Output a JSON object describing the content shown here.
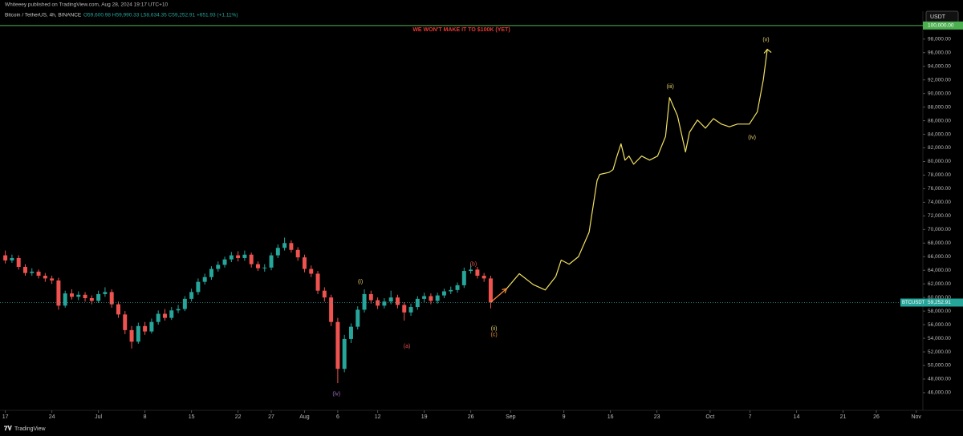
{
  "header": {
    "byline": "Whiteeey published on TradingView.com, Aug 28, 2024 19:17 UTC+10",
    "symbol": "Bitcoin / TetherUS, 4h, BINANCE",
    "ohlc": "O59,600.98 H59,990.33 L58,634.35 C59,252.91 +651.93 (+1.11%)",
    "currency": "USDT"
  },
  "footer": {
    "brand": "TradingView"
  },
  "chart_data": {
    "type": "candlestick",
    "title": "WE WON'T MAKE IT TO $100K (YET)",
    "up_color": "#26a69a",
    "down_color": "#ef5350",
    "candles": {
      "x": [
        0,
        1,
        2,
        3,
        4,
        5,
        6,
        7,
        8,
        9,
        10,
        11,
        12,
        13,
        14,
        15,
        16,
        17,
        18,
        19,
        20,
        21,
        22,
        23,
        24,
        25,
        26,
        27,
        28,
        29,
        30,
        31,
        32,
        33,
        34,
        35,
        36,
        37,
        38,
        39,
        40,
        41,
        42,
        43,
        44,
        45,
        46,
        47,
        48,
        49,
        50,
        51,
        52,
        53,
        54,
        55,
        56,
        57,
        58,
        59,
        60,
        61,
        62,
        63,
        64,
        65,
        66,
        67,
        68,
        69,
        70,
        71,
        72,
        73
      ],
      "open": [
        66200,
        65450,
        65800,
        64500,
        63600,
        63800,
        63200,
        62800,
        62500,
        58800,
        60600,
        60100,
        60400,
        59900,
        59500,
        60500,
        60800,
        59000,
        57500,
        55200,
        53500,
        55800,
        55000,
        56400,
        57600,
        57000,
        58100,
        58300,
        59800,
        60800,
        62300,
        63000,
        64200,
        64800,
        65600,
        66200,
        65800,
        66300,
        64900,
        64300,
        64400,
        66200,
        67300,
        68000,
        67000,
        65900,
        64200,
        63500,
        61000,
        60000,
        56400,
        49500,
        53900,
        55700,
        58200,
        60500,
        59600,
        58800,
        59400,
        60000,
        58900,
        57800,
        58600,
        59800,
        60200,
        59500,
        60300,
        60900,
        61100,
        61800,
        63900,
        64100,
        63200,
        62800
      ],
      "high": [
        66900,
        66300,
        66200,
        64900,
        64300,
        64100,
        63600,
        63200,
        62900,
        61000,
        61200,
        60900,
        60800,
        60300,
        61000,
        61500,
        61200,
        59400,
        58000,
        55800,
        56300,
        56400,
        56900,
        58100,
        58300,
        58600,
        58900,
        60200,
        61300,
        62800,
        63500,
        64600,
        65300,
        66000,
        66700,
        66800,
        66900,
        66600,
        65300,
        64900,
        66600,
        67800,
        68800,
        68400,
        67400,
        66300,
        64700,
        63900,
        61500,
        60400,
        57000,
        54500,
        56200,
        58700,
        61200,
        61000,
        60000,
        59900,
        61000,
        60400,
        59300,
        59100,
        60200,
        60700,
        60600,
        60700,
        61300,
        61600,
        62200,
        64400,
        64900,
        64500,
        63600,
        63200
      ],
      "low": [
        65000,
        65100,
        64100,
        63200,
        63200,
        62800,
        62300,
        62000,
        58200,
        58500,
        59700,
        59600,
        59400,
        59000,
        59200,
        60100,
        58500,
        57000,
        54600,
        52500,
        53200,
        54500,
        54700,
        56000,
        56600,
        56700,
        57700,
        58000,
        59400,
        60400,
        61900,
        62600,
        63800,
        64400,
        65200,
        65300,
        65400,
        64400,
        63900,
        63800,
        64000,
        65800,
        66900,
        66600,
        65400,
        63700,
        63000,
        60500,
        59400,
        55800,
        47400,
        49000,
        53300,
        55300,
        57800,
        59100,
        58300,
        58400,
        59000,
        58400,
        56600,
        57300,
        58200,
        59300,
        59000,
        59100,
        59900,
        60500,
        60700,
        61400,
        63500,
        62800,
        62300,
        58400
      ],
      "close": [
        65450,
        65800,
        64500,
        63600,
        63800,
        63200,
        62800,
        62500,
        58800,
        60600,
        60100,
        60400,
        59900,
        59500,
        60500,
        60800,
        59000,
        57500,
        55200,
        53500,
        55800,
        55000,
        56400,
        57600,
        57000,
        58100,
        58300,
        59800,
        60800,
        62300,
        63000,
        64200,
        64800,
        65600,
        66200,
        65800,
        66300,
        64900,
        64300,
        64400,
        66200,
        67300,
        68000,
        67000,
        65900,
        64200,
        63500,
        61000,
        60000,
        56400,
        49500,
        53900,
        55700,
        58200,
        60500,
        59600,
        58800,
        59400,
        60000,
        58900,
        57800,
        58600,
        59800,
        60200,
        59500,
        60300,
        60900,
        61100,
        61800,
        63900,
        64100,
        63200,
        62800,
        59300
      ]
    },
    "projection": {
      "color": "#f0e060",
      "x": [
        75.4,
        77.3,
        79.4,
        81.2,
        82.8,
        83.6,
        84.8,
        86.2,
        87.8,
        89.0,
        89.4,
        90.8,
        91.4,
        92.0,
        92.6,
        93.2,
        93.8,
        94.5,
        95.7,
        96.9,
        98.1,
        99.3,
        99.9,
        101.1,
        102.3,
        102.9,
        104.1,
        105.3,
        106.5,
        107.7,
        108.9,
        110.1,
        111.9,
        113.1,
        114.0,
        114.6
      ],
      "y": [
        61300,
        63500,
        61900,
        61100,
        63100,
        65500,
        64900,
        66000,
        69600,
        77200,
        78100,
        78400,
        78800,
        80800,
        82600,
        80200,
        80800,
        79600,
        80800,
        80200,
        80800,
        83700,
        89400,
        86700,
        81400,
        84300,
        86100,
        84900,
        86300,
        85500,
        85100,
        85500,
        85500,
        87300,
        92000,
        96500
      ]
    },
    "annotations": [
      {
        "text": "(i)",
        "x": 53.4,
        "y": 62300,
        "color": "#e8d36a"
      },
      {
        "text": "(ii)",
        "x": 73.5,
        "y": 55400,
        "color": "#e8d36a"
      },
      {
        "text": "(c)",
        "x": 73.5,
        "y": 54500,
        "color": "#f08a3a"
      },
      {
        "text": "(a)",
        "x": 60.4,
        "y": 52800,
        "color": "#e05050"
      },
      {
        "text": "(b)",
        "x": 70.4,
        "y": 64900,
        "color": "#e05050"
      },
      {
        "text": "(iv)",
        "x": 49.8,
        "y": 45800,
        "color": "#a070c0"
      },
      {
        "text": "(iii)",
        "x": 100.0,
        "y": 91000,
        "color": "#e8d36a"
      },
      {
        "text": "(iv)",
        "x": 112.3,
        "y": 83500,
        "color": "#e8d36a"
      },
      {
        "text": "(v)",
        "x": 114.4,
        "y": 97900,
        "color": "#e8d36a"
      }
    ],
    "level": {
      "value": 100000,
      "label": "100,000.00",
      "color": "#4caf50"
    },
    "last_price": {
      "name": "BTCUSDT",
      "value": 59252.91,
      "label": "59,252.91",
      "color": "#26a69a"
    },
    "xlim": [
      -0.8,
      138
    ],
    "ylim": [
      43400,
      102100
    ],
    "xticks": [
      {
        "value": 0,
        "label": "17"
      },
      {
        "value": 7,
        "label": "24"
      },
      {
        "value": 14,
        "label": "Jul"
      },
      {
        "value": 21,
        "label": "8"
      },
      {
        "value": 28,
        "label": "15"
      },
      {
        "value": 35,
        "label": "22"
      },
      {
        "value": 40,
        "label": "27"
      },
      {
        "value": 45,
        "label": "Aug"
      },
      {
        "value": 50,
        "label": "6"
      },
      {
        "value": 56,
        "label": "12"
      },
      {
        "value": 63,
        "label": "19"
      },
      {
        "value": 70,
        "label": "26"
      },
      {
        "value": 76,
        "label": "Sep"
      },
      {
        "value": 84,
        "label": "9"
      },
      {
        "value": 91,
        "label": "16"
      },
      {
        "value": 98,
        "label": "23"
      },
      {
        "value": 106,
        "label": "Oct"
      },
      {
        "value": 112,
        "label": "7"
      },
      {
        "value": 119,
        "label": "14"
      },
      {
        "value": 126,
        "label": "21"
      },
      {
        "value": 131,
        "label": "26"
      },
      {
        "value": 137,
        "label": "Nov"
      }
    ],
    "yticks": [
      {
        "value": 46000,
        "label": "46,000.00"
      },
      {
        "value": 48000,
        "label": "48,000.00"
      },
      {
        "value": 50000,
        "label": "50,000.00"
      },
      {
        "value": 52000,
        "label": "52,000.00"
      },
      {
        "value": 54000,
        "label": "54,000.00"
      },
      {
        "value": 56000,
        "label": "56,000.00"
      },
      {
        "value": 58000,
        "label": "58,000.00"
      },
      {
        "value": 60000,
        "label": "60,000.00"
      },
      {
        "value": 62000,
        "label": "62,000.00"
      },
      {
        "value": 64000,
        "label": "64,000.00"
      },
      {
        "value": 66000,
        "label": "66,000.00"
      },
      {
        "value": 68000,
        "label": "68,000.00"
      },
      {
        "value": 70000,
        "label": "70,000.00"
      },
      {
        "value": 72000,
        "label": "72,000.00"
      },
      {
        "value": 74000,
        "label": "74,000.00"
      },
      {
        "value": 76000,
        "label": "76,000.00"
      },
      {
        "value": 78000,
        "label": "78,000.00"
      },
      {
        "value": 80000,
        "label": "80,000.00"
      },
      {
        "value": 82000,
        "label": "82,000.00"
      },
      {
        "value": 84000,
        "label": "84,000.00"
      },
      {
        "value": 86000,
        "label": "86,000.00"
      },
      {
        "value": 88000,
        "label": "88,000.00"
      },
      {
        "value": 90000,
        "label": "90,000.00"
      },
      {
        "value": 92000,
        "label": "92,000.00"
      },
      {
        "value": 94000,
        "label": "94,000.00"
      },
      {
        "value": 96000,
        "label": "96,000.00"
      },
      {
        "value": 98000,
        "label": "98,000.00"
      }
    ]
  }
}
